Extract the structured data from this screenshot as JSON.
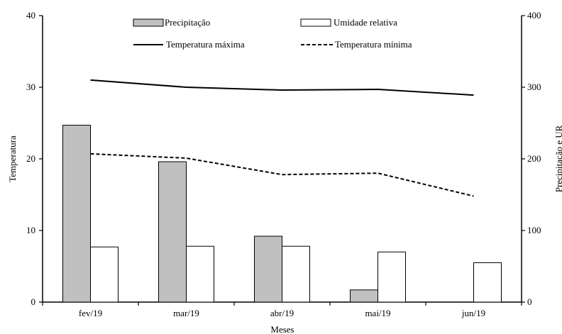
{
  "chart_data": {
    "type": "bar+line",
    "title": "",
    "xlabel": "Meses",
    "ylabel_left": "Temperatura",
    "ylabel_right": "Precipitação e UR",
    "categories": [
      "fev/19",
      "mar/19",
      "abr/19",
      "mai/19",
      "jun/19"
    ],
    "y_left": {
      "range": [
        0,
        40
      ],
      "ticks": [
        "0",
        "10",
        "20",
        "30",
        "40"
      ]
    },
    "y_right": {
      "range": [
        0,
        400
      ],
      "ticks": [
        "0",
        "100",
        "200",
        "300",
        "400"
      ]
    },
    "bar_series": [
      {
        "name": "Precipitação",
        "axis": "right",
        "values": [
          247,
          196,
          92,
          17,
          0
        ],
        "fill": "#c0c0c0"
      },
      {
        "name": "Umidade relativa",
        "axis": "right",
        "values": [
          77,
          78,
          78,
          70,
          55
        ],
        "fill": "#ffffff"
      }
    ],
    "line_series": [
      {
        "name": "Temperatura máxima",
        "axis": "left",
        "values": [
          31.0,
          30.0,
          29.6,
          29.7,
          28.9
        ],
        "style": "solid"
      },
      {
        "name": "Temperatura mínima",
        "axis": "left",
        "values": [
          20.7,
          20.1,
          17.8,
          18.0,
          14.8
        ],
        "style": "dashed"
      }
    ],
    "grid": false,
    "legend_position": "top"
  }
}
